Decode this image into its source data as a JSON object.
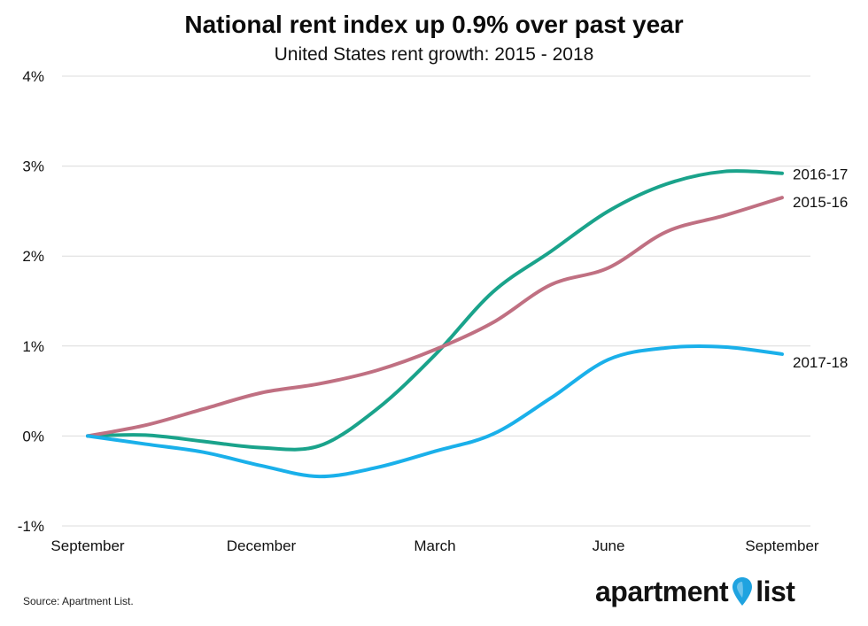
{
  "title": "National rent index up 0.9% over past year",
  "subtitle": "United States rent growth: 2015 - 2018",
  "source": "Source: Apartment List.",
  "logo": {
    "word1": "apartment",
    "word2": "list",
    "pin_color": "#1fa3e0",
    "pin_icon": "map-pin-icon"
  },
  "chart_data": {
    "type": "line",
    "x_ticks": [
      "September",
      "December",
      "March",
      "June",
      "September"
    ],
    "y_ticks": [
      "4%",
      "3%",
      "2%",
      "1%",
      "0%",
      "-1%"
    ],
    "ylim": [
      -1,
      4
    ],
    "xlim": [
      0,
      12
    ],
    "grid": true,
    "series": [
      {
        "name": "2016-17",
        "color": "#1aa38b",
        "points": [
          [
            0,
            0
          ],
          [
            1,
            0.01
          ],
          [
            2,
            -0.06
          ],
          [
            3,
            -0.13
          ],
          [
            4,
            -0.11
          ],
          [
            5,
            0.3
          ],
          [
            6,
            0.9
          ],
          [
            7,
            1.6
          ],
          [
            8,
            2.05
          ],
          [
            9,
            2.5
          ],
          [
            10,
            2.8
          ],
          [
            11,
            2.94
          ],
          [
            12,
            2.92
          ]
        ]
      },
      {
        "name": "2015-16",
        "color": "#c07082",
        "points": [
          [
            0,
            0
          ],
          [
            1,
            0.12
          ],
          [
            2,
            0.3
          ],
          [
            3,
            0.48
          ],
          [
            4,
            0.58
          ],
          [
            5,
            0.73
          ],
          [
            6,
            0.96
          ],
          [
            7,
            1.26
          ],
          [
            8,
            1.68
          ],
          [
            9,
            1.87
          ],
          [
            10,
            2.27
          ],
          [
            11,
            2.45
          ],
          [
            12,
            2.65
          ]
        ]
      },
      {
        "name": "2017-18",
        "color": "#1ab0ea",
        "points": [
          [
            0,
            0
          ],
          [
            1,
            -0.09
          ],
          [
            2,
            -0.18
          ],
          [
            3,
            -0.33
          ],
          [
            4,
            -0.45
          ],
          [
            5,
            -0.35
          ],
          [
            6,
            -0.17
          ],
          [
            7,
            0.02
          ],
          [
            8,
            0.42
          ],
          [
            9,
            0.85
          ],
          [
            10,
            0.98
          ],
          [
            11,
            0.99
          ],
          [
            12,
            0.91
          ]
        ]
      }
    ]
  }
}
